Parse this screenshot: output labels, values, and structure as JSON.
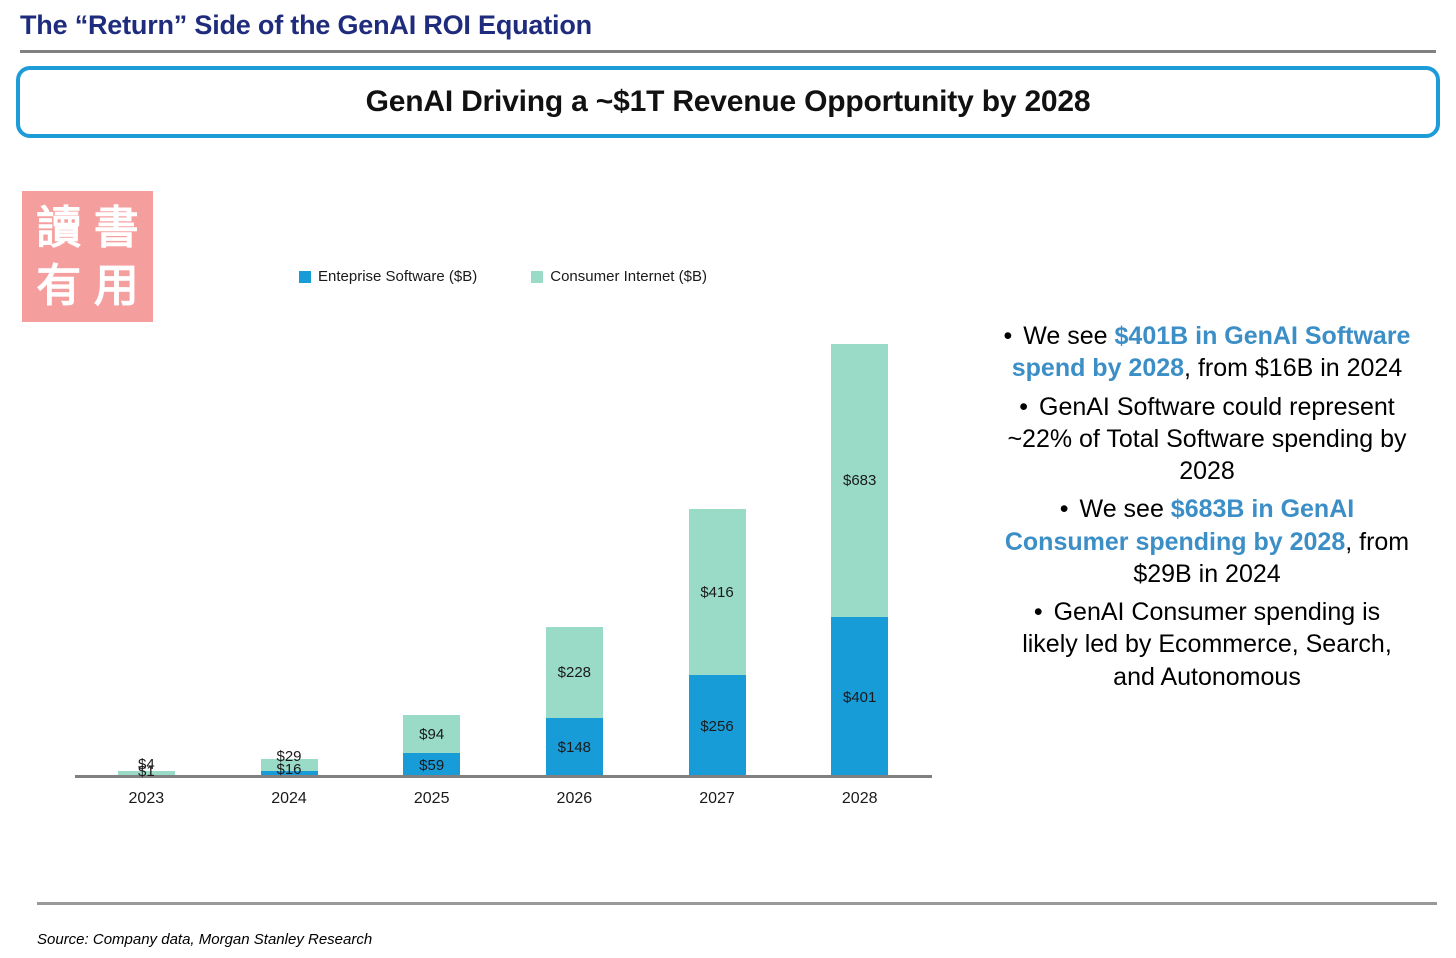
{
  "page": {
    "title": "The “Return” Side of the GenAI ROI Equation"
  },
  "banner": {
    "text": "GenAI Driving a ~$1T Revenue Opportunity by 2028"
  },
  "stamp": {
    "chars": [
      "讀",
      "書",
      "有",
      "用"
    ]
  },
  "legend": {
    "items": [
      {
        "label": "Enteprise Software ($B)",
        "color": "#189CD8"
      },
      {
        "label": "Consumer Internet ($B)",
        "color": "#9ADBC8"
      }
    ]
  },
  "chart_data": {
    "type": "bar",
    "stacked": true,
    "title": "",
    "xlabel": "",
    "ylabel": "",
    "categories": [
      "2023",
      "2024",
      "2025",
      "2026",
      "2027",
      "2028"
    ],
    "series": [
      {
        "name": "Enteprise Software ($B)",
        "color": "#189CD8",
        "values": [
          1,
          16,
          59,
          148,
          256,
          401
        ],
        "labels": [
          "$1",
          "$16",
          "$59",
          "$148",
          "$256",
          "$401"
        ]
      },
      {
        "name": "Consumer Internet ($B)",
        "color": "#9ADBC8",
        "values": [
          4,
          29,
          94,
          228,
          416,
          683
        ],
        "labels": [
          "$4",
          "$29",
          "$94",
          "$228",
          "$416",
          "$683"
        ]
      }
    ],
    "totals": [
      5,
      45,
      153,
      376,
      672,
      1084
    ],
    "value_prefix": "$",
    "ylim": [
      0,
      1100
    ],
    "grid": false,
    "legend_position": "top"
  },
  "insights": {
    "bullet_char": "•",
    "bullets": [
      {
        "pre": "We see ",
        "highlight": "$401B in GenAI Software spend by 2028",
        "post": ", from $16B in 2024"
      },
      {
        "pre": "",
        "highlight": "",
        "post": "GenAI Software could represent ~22% of Total Software spending by 2028"
      },
      {
        "pre": "We see ",
        "highlight": "$683B in GenAI Consumer spending by 2028",
        "post": ", from $29B in 2024"
      },
      {
        "pre": "",
        "highlight": "",
        "post": "GenAI Consumer spending is likely led by Ecommerce, Search, and Autonomous"
      }
    ]
  },
  "footer": {
    "source": "Source: Company data, Morgan Stanley Research"
  },
  "colors": {
    "title_text": "#1F2C7D",
    "banner_border": "#1E9CD7",
    "highlight_text": "#3B8EC6",
    "axis_line": "#808080",
    "stamp_bg": "#F59E9E",
    "enterprise_blue": "#189CD8",
    "consumer_green": "#9ADBC8"
  }
}
